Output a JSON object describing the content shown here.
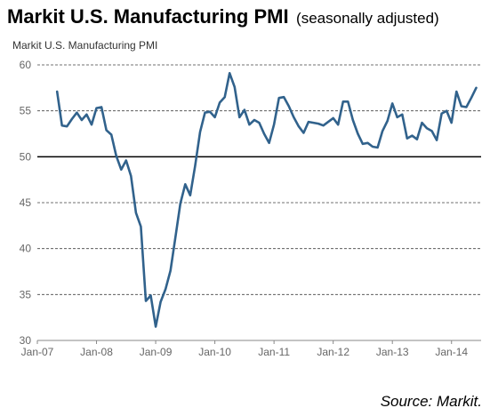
{
  "header": {
    "title": "Markit U.S. Manufacturing PMI",
    "subtitle": "(seasonally adjusted)"
  },
  "footer": {
    "source": "Source: Markit."
  },
  "chart_data": {
    "type": "line",
    "title": "Markit U.S. Manufacturing PMI",
    "xlabel": "",
    "ylabel": "",
    "ylim": [
      30,
      60
    ],
    "yticks": [
      30,
      35,
      40,
      45,
      50,
      55,
      60
    ],
    "y_reference_line": 50,
    "xlim": [
      "2007-01",
      "2014-07"
    ],
    "xticks": [
      "Jan-07",
      "Jan-08",
      "Jan-09",
      "Jan-10",
      "Jan-11",
      "Jan-12",
      "Jan-13",
      "Jan-14"
    ],
    "grid": "horizontal dashed",
    "legend": "none",
    "line_color": "#31628c",
    "series": [
      {
        "x": [
          "2007-05",
          "2007-06",
          "2007-07",
          "2007-08",
          "2007-09",
          "2007-10",
          "2007-11",
          "2007-12",
          "2008-01",
          "2008-02",
          "2008-03",
          "2008-04",
          "2008-05",
          "2008-06",
          "2008-07",
          "2008-08",
          "2008-09",
          "2008-10",
          "2008-11",
          "2008-12",
          "2009-01",
          "2009-02",
          "2009-03",
          "2009-04",
          "2009-05",
          "2009-06",
          "2009-07",
          "2009-08",
          "2009-09",
          "2009-10",
          "2009-11",
          "2009-12",
          "2010-01",
          "2010-02",
          "2010-03",
          "2010-04",
          "2010-05",
          "2010-06",
          "2010-07",
          "2010-08",
          "2010-09",
          "2010-10",
          "2010-11",
          "2010-12",
          "2011-01",
          "2011-02",
          "2011-03",
          "2011-04",
          "2011-05",
          "2011-06",
          "2011-07",
          "2011-08",
          "2011-09",
          "2011-10",
          "2011-11",
          "2011-12",
          "2012-01",
          "2012-02",
          "2012-03",
          "2012-04",
          "2012-05",
          "2012-06",
          "2012-07",
          "2012-08",
          "2012-09",
          "2012-10",
          "2012-11",
          "2012-12",
          "2013-01",
          "2013-02",
          "2013-03",
          "2013-04",
          "2013-05",
          "2013-06",
          "2013-07",
          "2013-08",
          "2013-09",
          "2013-10",
          "2013-11",
          "2013-12",
          "2014-01",
          "2014-02",
          "2014-03",
          "2014-04",
          "2014-05",
          "2014-06"
        ],
        "values": [
          57.1,
          53.4,
          53.3,
          54.1,
          54.8,
          54.0,
          54.6,
          53.5,
          55.3,
          55.4,
          52.9,
          52.4,
          50.1,
          48.6,
          49.6,
          47.9,
          43.9,
          42.4,
          34.3,
          34.9,
          31.5,
          34.2,
          35.6,
          37.6,
          41.2,
          44.9,
          47.0,
          45.8,
          49.0,
          52.7,
          54.8,
          54.9,
          54.3,
          55.9,
          56.5,
          59.1,
          57.6,
          54.3,
          55.1,
          53.5,
          54.0,
          53.7,
          52.5,
          51.5,
          53.5,
          56.4,
          56.5,
          55.5,
          54.3,
          53.3,
          52.6,
          53.8,
          53.7,
          53.6,
          53.4,
          53.8,
          54.2,
          53.5,
          56.0,
          56.0,
          54.0,
          52.5,
          51.4,
          51.5,
          51.1,
          51.0,
          52.8,
          53.9,
          55.8,
          54.3,
          54.6,
          52.0,
          52.3,
          51.9,
          53.7,
          53.1,
          52.8,
          51.8,
          54.7,
          55.0,
          53.7,
          57.1,
          55.5,
          55.4,
          56.4,
          57.5
        ]
      }
    ]
  }
}
